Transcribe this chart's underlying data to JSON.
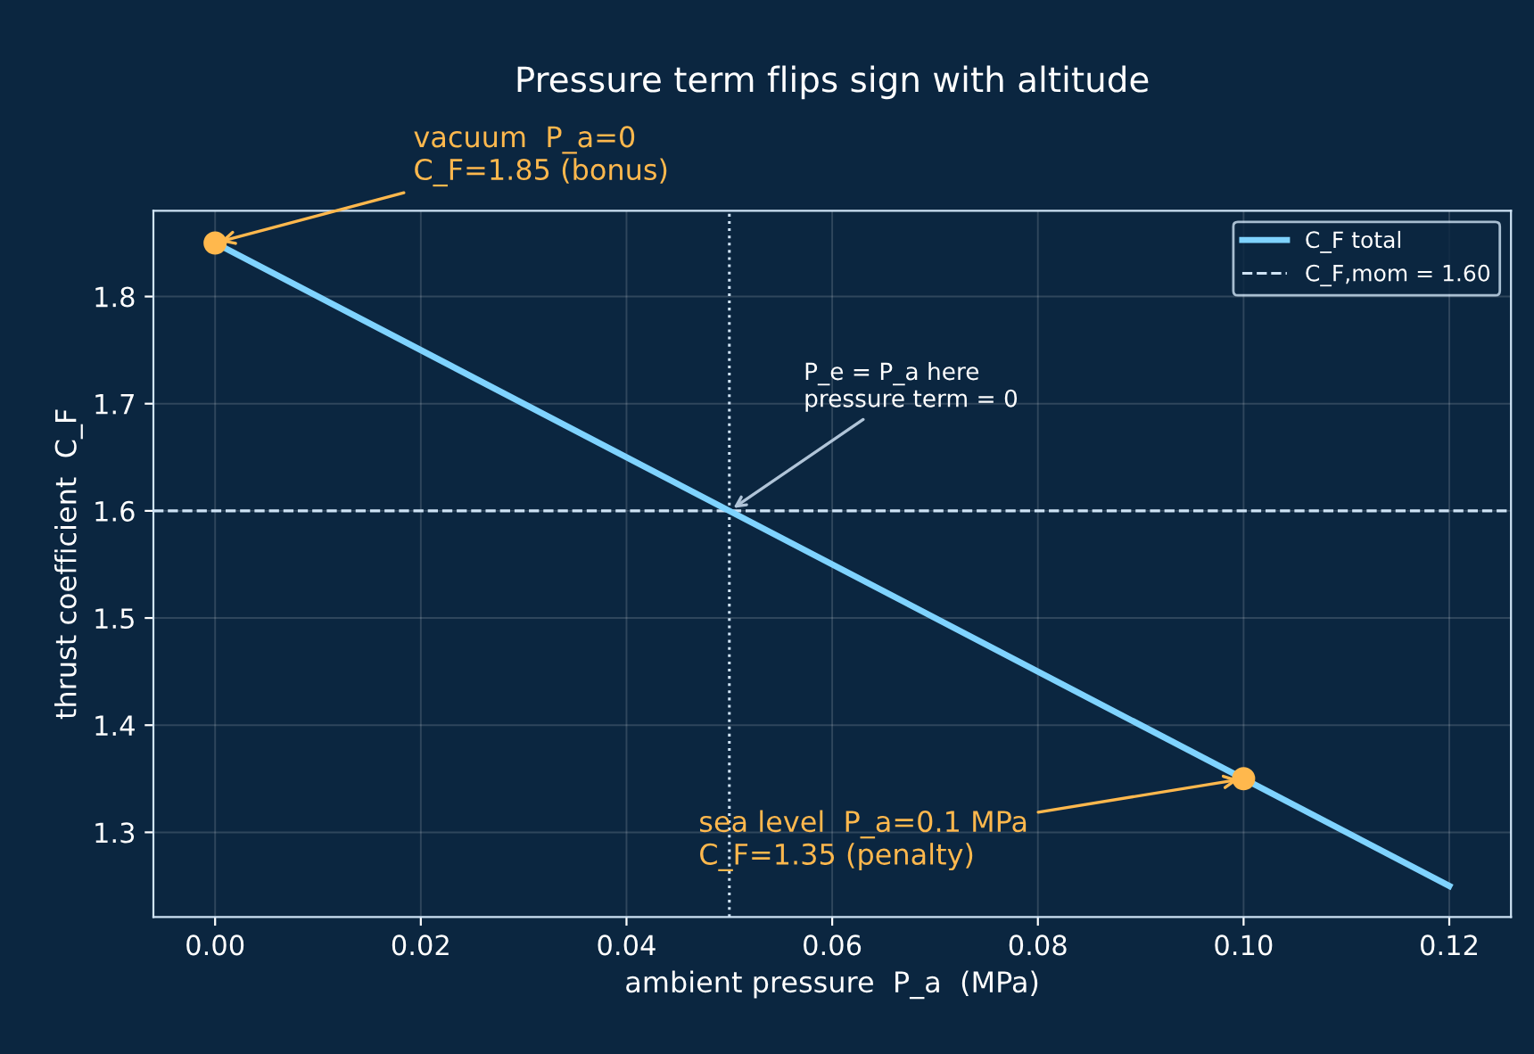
{
  "chart_data": {
    "type": "line",
    "title": "Pressure term flips sign with altitude",
    "xlabel": "ambient pressure  P_a  (MPa)",
    "ylabel": "thrust coefficient  C_F",
    "series": [
      {
        "name": "C_F total",
        "color": "#7fd3ff",
        "x": [
          0,
          0.12
        ],
        "values": [
          1.85,
          1.25
        ]
      },
      {
        "type": "scatter",
        "color": "#ffb84d",
        "x": [
          0,
          0.1
        ],
        "values": [
          1.85,
          1.35
        ],
        "marker": "circle"
      }
    ],
    "ref_lines": [
      {
        "axis": "y",
        "value": 1.6,
        "label": "C_F,mom = 1.60",
        "color": "#cfe3f5",
        "line_style": "dashed"
      },
      {
        "axis": "x",
        "value": 0.05,
        "color": "#cfe3f5",
        "line_style": "dotted"
      }
    ],
    "annotations": [
      {
        "text": "vacuum  P_a=0\nC_F=1.85 (bonus)",
        "x": 0,
        "y": 1.85
      },
      {
        "text": "sea level  P_a=0.1 MPa\nC_F=1.35 (penalty)",
        "x": 0.1,
        "y": 1.35
      },
      {
        "text": "P_e = P_a here\npressure term = 0",
        "x": 0.05,
        "y": 1.6
      }
    ],
    "xlim": [
      -0.006,
      0.126
    ],
    "ylim": [
      1.221,
      1.88
    ],
    "xticks": [
      {
        "value": 0,
        "label": "0.00"
      },
      {
        "value": 0.02,
        "label": "0.02"
      },
      {
        "value": 0.04,
        "label": "0.04"
      },
      {
        "value": 0.06,
        "label": "0.06"
      },
      {
        "value": 0.08,
        "label": "0.08"
      },
      {
        "value": 0.1,
        "label": "0.10"
      },
      {
        "value": 0.12,
        "label": "0.12"
      }
    ],
    "yticks": [
      1.3,
      1.4,
      1.5,
      1.6,
      1.7,
      1.8
    ],
    "grid": true,
    "legend": "top right"
  }
}
